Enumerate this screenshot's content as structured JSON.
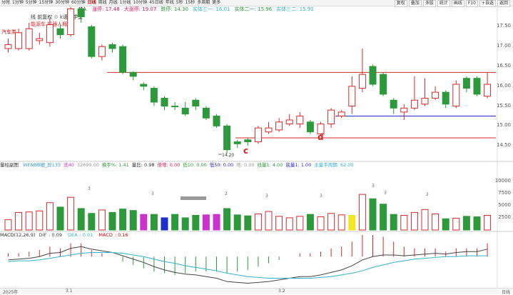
{
  "toolbar": {
    "periods": [
      "分时",
      "1分钟",
      "5分钟",
      "15分钟",
      "30分钟",
      "60分钟",
      "日线",
      "周线",
      "月线",
      "1分线",
      "10分钟",
      "45日线",
      "年线",
      "5秒",
      "15秒",
      "多周期",
      "更多"
    ],
    "active_period": "日线",
    "right_buttons": [
      "复权",
      "叠加",
      "多股",
      "统计",
      "画线",
      "F10",
      "+自选",
      "返回"
    ]
  },
  "legend": {
    "ma_title": "MA",
    "items": [
      {
        "label": "涨停",
        "value": "17.48",
        "color": "#d4145a"
      },
      {
        "label": "大涨停",
        "value": "19.07",
        "color": "#d4145a"
      },
      {
        "label": "跌停",
        "value": "14.30",
        "color": "#2c9a3a"
      },
      {
        "label": "实体三一",
        "value": "16.01",
        "color": "#33b3c8"
      },
      {
        "label": "实体二一",
        "value": "15.96",
        "color": "#2c9a3a"
      },
      {
        "label": "实体三二",
        "value": "15.91",
        "color": "#33b3c8"
      }
    ]
  },
  "stock": {
    "title_prefix": "线",
    "adjust": "前复权",
    "vip_icon": "gear-icon",
    "course": "k语言学堂",
    "tags": [
      "能源车",
      "机器人概念"
    ],
    "sector": "汽车类"
  },
  "chart_data": {
    "type": "candlestick",
    "price_axis": [
      "17.50",
      "17.00",
      "16.50",
      "16.00",
      "15.50",
      "15.00",
      "14.50"
    ],
    "price_ylim": [
      14.25,
      17.85
    ],
    "candles": [
      {
        "o": 16.95,
        "c": 17.05,
        "h": 17.2,
        "l": 16.85,
        "up": true
      },
      {
        "o": 16.95,
        "c": 17.35,
        "h": 17.45,
        "l": 16.9,
        "up": true
      },
      {
        "o": 16.95,
        "c": 17.45,
        "h": 17.6,
        "l": 16.9,
        "up": true
      },
      {
        "o": 17.15,
        "c": 17.2,
        "h": 17.35,
        "l": 17.05,
        "up": true
      },
      {
        "o": 17.1,
        "c": 17.55,
        "h": 17.7,
        "l": 17.0,
        "up": true
      },
      {
        "o": 17.45,
        "c": 17.3,
        "h": 17.55,
        "l": 17.2,
        "up": false
      },
      {
        "o": 17.3,
        "c": 17.95,
        "h": 18.0,
        "l": 17.25,
        "up": true
      },
      {
        "o": 17.95,
        "c": 17.75,
        "h": 18.0,
        "l": 17.6,
        "up": false
      },
      {
        "o": 17.5,
        "c": 16.75,
        "h": 17.55,
        "l": 16.7,
        "up": false
      },
      {
        "o": 16.75,
        "c": 17.0,
        "h": 17.05,
        "l": 16.65,
        "up": true
      },
      {
        "o": 17.05,
        "c": 16.95,
        "h": 17.1,
        "l": 16.85,
        "up": false
      },
      {
        "o": 17.0,
        "c": 16.35,
        "h": 17.05,
        "l": 16.3,
        "up": false
      },
      {
        "o": 16.35,
        "c": 16.25,
        "h": 16.38,
        "l": 16.15,
        "up": false
      },
      {
        "o": 16.05,
        "c": 16.0,
        "h": 16.1,
        "l": 15.9,
        "up": false
      },
      {
        "o": 15.95,
        "c": 15.6,
        "h": 16.0,
        "l": 15.5,
        "up": false
      },
      {
        "o": 15.7,
        "c": 15.5,
        "h": 15.75,
        "l": 15.4,
        "up": false
      },
      {
        "o": 15.5,
        "c": 15.5,
        "h": 15.6,
        "l": 15.4,
        "up": false
      },
      {
        "o": 15.45,
        "c": 15.3,
        "h": 15.6,
        "l": 15.25,
        "up": false
      },
      {
        "o": 15.65,
        "c": 15.5,
        "h": 15.7,
        "l": 15.4,
        "up": false
      },
      {
        "o": 15.45,
        "c": 15.2,
        "h": 15.5,
        "l": 15.15,
        "up": false
      },
      {
        "o": 15.25,
        "c": 15.0,
        "h": 15.3,
        "l": 14.95,
        "up": false
      },
      {
        "o": 15.0,
        "c": 14.4,
        "h": 15.05,
        "l": 14.3,
        "up": false
      },
      {
        "o": 14.55,
        "c": 14.6,
        "h": 14.65,
        "l": 14.45,
        "up": false
      },
      {
        "o": 14.6,
        "c": 14.65,
        "h": 14.7,
        "l": 14.5,
        "up": false
      },
      {
        "o": 14.6,
        "c": 14.95,
        "h": 15.0,
        "l": 14.55,
        "up": true
      },
      {
        "o": 14.85,
        "c": 14.95,
        "h": 15.1,
        "l": 14.8,
        "up": true
      },
      {
        "o": 14.9,
        "c": 15.1,
        "h": 15.2,
        "l": 14.85,
        "up": true
      },
      {
        "o": 15.05,
        "c": 15.15,
        "h": 15.3,
        "l": 15.0,
        "up": true
      },
      {
        "o": 15.05,
        "c": 15.25,
        "h": 15.35,
        "l": 14.95,
        "up": true
      },
      {
        "o": 15.1,
        "c": 14.85,
        "h": 15.15,
        "l": 14.8,
        "up": false
      },
      {
        "o": 14.8,
        "c": 15.05,
        "h": 15.1,
        "l": 14.75,
        "up": true
      },
      {
        "o": 15.05,
        "c": 15.4,
        "h": 15.45,
        "l": 14.95,
        "up": true
      },
      {
        "o": 15.25,
        "c": 15.35,
        "h": 15.4,
        "l": 15.2,
        "up": true
      },
      {
        "o": 15.5,
        "c": 16.0,
        "h": 16.25,
        "l": 15.3,
        "up": true
      },
      {
        "o": 15.95,
        "c": 16.3,
        "h": 16.95,
        "l": 15.85,
        "up": true
      },
      {
        "o": 16.5,
        "c": 16.05,
        "h": 16.55,
        "l": 16.0,
        "up": false
      },
      {
        "o": 16.3,
        "c": 15.8,
        "h": 16.35,
        "l": 15.75,
        "up": false
      },
      {
        "o": 15.65,
        "c": 15.45,
        "h": 15.7,
        "l": 15.3,
        "up": false
      },
      {
        "o": 15.35,
        "c": 15.45,
        "h": 15.55,
        "l": 15.15,
        "up": true
      },
      {
        "o": 15.45,
        "c": 15.65,
        "h": 16.25,
        "l": 15.4,
        "up": true
      },
      {
        "o": 15.55,
        "c": 15.7,
        "h": 16.2,
        "l": 15.5,
        "up": true
      },
      {
        "o": 15.7,
        "c": 15.85,
        "h": 16.0,
        "l": 15.65,
        "up": true
      },
      {
        "o": 15.85,
        "c": 15.55,
        "h": 15.9,
        "l": 15.45,
        "up": false
      },
      {
        "o": 15.5,
        "c": 16.05,
        "h": 16.15,
        "l": 15.45,
        "up": true
      },
      {
        "o": 16.2,
        "c": 15.95,
        "h": 16.25,
        "l": 15.85,
        "up": false
      },
      {
        "o": 16.2,
        "c": 15.8,
        "h": 16.25,
        "l": 15.75,
        "up": false
      },
      {
        "o": 15.75,
        "c": 16.05,
        "h": 16.35,
        "l": 15.7,
        "up": true
      }
    ],
    "hlines": [
      {
        "value": 16.35,
        "color": "#d42a2a"
      },
      {
        "value": 15.25,
        "color": "#2a2acd"
      },
      {
        "value": 14.7,
        "color": "#d42a2a"
      }
    ],
    "annotations": [
      {
        "text": "c",
        "color": "#d42a2a"
      },
      {
        "text": "d",
        "color": "#d42a2a"
      },
      {
        "text": "14.20",
        "color": "#333"
      }
    ],
    "volume_axis": [
      "10000",
      "7500",
      "5000",
      "2500"
    ],
    "volume_ylim": [
      0,
      12000
    ],
    "volumes": [
      2100,
      3600,
      3700,
      3900,
      5600,
      4700,
      6700,
      4400,
      3400,
      4100,
      3600,
      4300,
      4000,
      3200,
      3200,
      2500,
      3200,
      2500,
      3000,
      3100,
      3200,
      4400,
      3100,
      2900,
      3300,
      3800,
      2800,
      2500,
      2800,
      3200,
      2700,
      3400,
      3100,
      3000,
      7300,
      6400,
      5300,
      3200,
      3000,
      3600,
      4200,
      3300,
      2300,
      2400,
      2800,
      2700,
      3000
    ],
    "volume_up": [
      true,
      true,
      true,
      true,
      true,
      false,
      true,
      false,
      false,
      true,
      false,
      false,
      false,
      false,
      false,
      false,
      false,
      false,
      false,
      false,
      false,
      false,
      false,
      false,
      true,
      true,
      true,
      true,
      true,
      false,
      true,
      true,
      true,
      true,
      true,
      false,
      false,
      false,
      true,
      true,
      true,
      true,
      false,
      true,
      false,
      false,
      true
    ],
    "volume_highlight": {
      "13": "#cc33cc",
      "15": "#1a2fcc",
      "19": "#cc33cc",
      "20": "#cc33cc",
      "33": "#f2e620"
    },
    "volume_marks": [
      "3",
      "3",
      "2",
      "3",
      "3",
      "3",
      "3",
      "2"
    ],
    "macd": {
      "dif": [
        -0.04,
        -0.03,
        -0.02,
        0.0,
        0.04,
        0.05,
        0.1,
        0.12,
        0.09,
        0.07,
        0.05,
        0.01,
        -0.03,
        -0.07,
        -0.12,
        -0.16,
        -0.19,
        -0.21,
        -0.22,
        -0.24,
        -0.26,
        -0.3,
        -0.31,
        -0.32,
        -0.31,
        -0.3,
        -0.28,
        -0.26,
        -0.24,
        -0.24,
        -0.22,
        -0.19,
        -0.16,
        -0.11,
        -0.04,
        0.0,
        0.02,
        0.02,
        0.01,
        0.02,
        0.03,
        0.04,
        0.03,
        0.05,
        0.06,
        0.06,
        0.09
      ],
      "dea": [
        -0.06,
        -0.05,
        -0.05,
        -0.04,
        -0.02,
        0.0,
        0.02,
        0.04,
        0.05,
        0.05,
        0.05,
        0.04,
        0.02,
        0.0,
        -0.03,
        -0.06,
        -0.08,
        -0.11,
        -0.13,
        -0.15,
        -0.17,
        -0.2,
        -0.22,
        -0.24,
        -0.25,
        -0.26,
        -0.26,
        -0.26,
        -0.26,
        -0.26,
        -0.25,
        -0.24,
        -0.22,
        -0.2,
        -0.17,
        -0.13,
        -0.1,
        -0.07,
        -0.05,
        -0.03,
        -0.02,
        -0.01,
        -0.0,
        0.0,
        0.01,
        0.01,
        0.01
      ],
      "ylim": [
        -0.35,
        0.2
      ]
    }
  },
  "volume_panel": {
    "title": "量柱副图",
    "items": [
      {
        "label": "WENBB细_异135",
        "value": "",
        "color": "#3a9ad9"
      },
      {
        "label": "洗40",
        "value": "",
        "color": "#cc33cc"
      },
      {
        "label": "",
        "value": "32699.00",
        "color": "#999"
      },
      {
        "label": "换手%",
        "value": "1.41",
        "color": "#2c9a3a"
      },
      {
        "label": "量比",
        "value": "0.98",
        "color": "#333"
      },
      {
        "label": "倍增",
        "value": "0.00",
        "color": "#d4145a"
      },
      {
        "label": "低10",
        "value": "0.00",
        "color": "#2c9a3a"
      },
      {
        "label": "低50",
        "value": "0.00",
        "color": "#2a2acd"
      },
      {
        "label": "地",
        "value": "0.00",
        "color": "#999"
      },
      {
        "label": "线量1",
        "value": "4.00",
        "color": "#2c9a3a"
      },
      {
        "label": "底量1",
        "value": "1.00",
        "color": "#2a2acd"
      },
      {
        "label": "主量手周期",
        "value": "62.00",
        "color": "#33b3c8"
      }
    ]
  },
  "macd_panel": {
    "title": "MACD(12,26,9)",
    "dif_label": "DIF",
    "dif": "0.09",
    "dea_label": "DEA",
    "dea": "0.01",
    "macd_label": "MACD",
    "macd": "0.16"
  },
  "dates": {
    "start": "2025年",
    "m1": "3.1",
    "m2": "3.2",
    "end": "日线"
  },
  "colors": {
    "up": "#d42a2a",
    "down": "#2c9a3a",
    "dif": "#444",
    "dea": "#33b3c8"
  }
}
